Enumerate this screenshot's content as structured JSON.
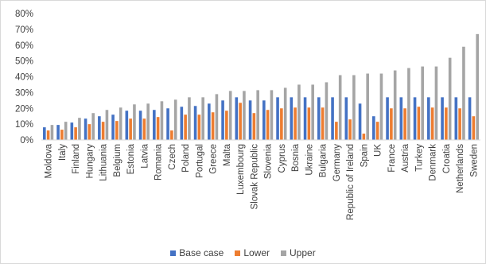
{
  "chart_data": {
    "type": "bar",
    "title": "",
    "xlabel": "",
    "ylabel": "",
    "ylim": [
      0,
      80
    ],
    "y_ticks": [
      "0%",
      "10%",
      "20%",
      "30%",
      "40%",
      "50%",
      "60%",
      "70%",
      "80%"
    ],
    "grid": false,
    "legend_position": "bottom",
    "categories": [
      "Moldova",
      "Italy",
      "Finland",
      "Hungary",
      "Lithuania",
      "Belgium",
      "Estonia",
      "Latvia",
      "Romania",
      "Czech",
      "Poland",
      "Portugal",
      "Greece",
      "Malta",
      "Luxembourg",
      "Slovak Republic",
      "Slovenia",
      "Cyprus",
      "Bosnia",
      "Ukraine",
      "Bulgaria",
      "Germany",
      "Republic of Ireland",
      "Spain",
      "UK",
      "France",
      "Austria",
      "Turkey",
      "Denmark",
      "Croatia",
      "Netherlands",
      "Sweden"
    ],
    "series": [
      {
        "name": "Base case",
        "color": "#4472c4",
        "values": [
          8,
          9.5,
          11,
          13.5,
          15,
          16,
          18.5,
          18.5,
          19,
          20,
          21,
          21.5,
          23,
          25,
          27,
          25,
          25,
          27,
          27,
          27,
          27,
          27,
          27,
          23,
          15,
          27,
          27,
          27,
          27,
          27,
          27,
          27
        ]
      },
      {
        "name": "Lower",
        "color": "#ed7d31",
        "values": [
          6,
          6.5,
          8,
          10,
          11.5,
          12,
          13.5,
          13.5,
          14.5,
          6,
          16,
          16,
          17.5,
          18.5,
          23.5,
          17,
          19,
          20,
          20.5,
          20.5,
          20.5,
          11.5,
          13,
          4,
          11.5,
          20,
          20,
          21,
          20.5,
          20.5,
          20,
          15
        ]
      },
      {
        "name": "Upper",
        "color": "#a5a5a5",
        "values": [
          9.5,
          11.5,
          14,
          17,
          19,
          20.5,
          22.5,
          23,
          24.5,
          25.5,
          27,
          27,
          29,
          31,
          31,
          31.5,
          31.5,
          33,
          35,
          35,
          36.5,
          41,
          41,
          42,
          42,
          44,
          45.5,
          46.5,
          46.5,
          52,
          59,
          67
        ]
      }
    ]
  }
}
